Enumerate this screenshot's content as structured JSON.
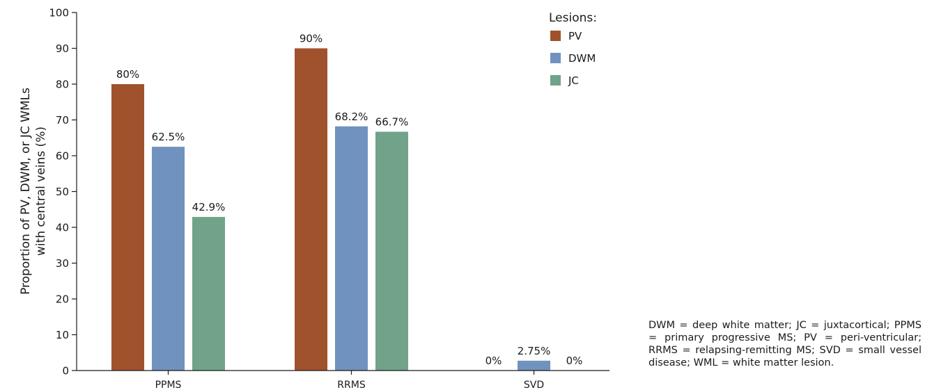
{
  "chart_data": {
    "type": "bar",
    "categories": [
      "PPMS",
      "RRMS",
      "SVD"
    ],
    "series": [
      {
        "name": "PV",
        "color": "#a0522d",
        "values": [
          80,
          90,
          0
        ],
        "labels": [
          "80%",
          "90%",
          "0%"
        ]
      },
      {
        "name": "DWM",
        "color": "#7092be",
        "values": [
          62.5,
          68.2,
          2.75
        ],
        "labels": [
          "62.5%",
          "68.2%",
          "2.75%"
        ]
      },
      {
        "name": "JC",
        "color": "#70a38a",
        "values": [
          42.9,
          66.7,
          0
        ],
        "labels": [
          "42.9%",
          "66.7%",
          "0%"
        ]
      }
    ],
    "title": "",
    "xlabel": "",
    "ylabel": [
      "Proportion of PV, DWM, or JC WMLs",
      "with central veins (%)"
    ],
    "ylim": [
      0,
      100
    ],
    "yticks": [
      0,
      10,
      20,
      30,
      40,
      50,
      60,
      70,
      80,
      90,
      100
    ],
    "grid": false,
    "legend": {
      "title": "Lesions:",
      "position": "top-right"
    }
  },
  "footnote": "DWM = deep white matter; JC = juxtacortical; PPMS = primary progressive MS; PV = peri-ventricular; RRMS = relapsing-remitting MS; SVD = small vessel disease; WML = white matter lesion."
}
